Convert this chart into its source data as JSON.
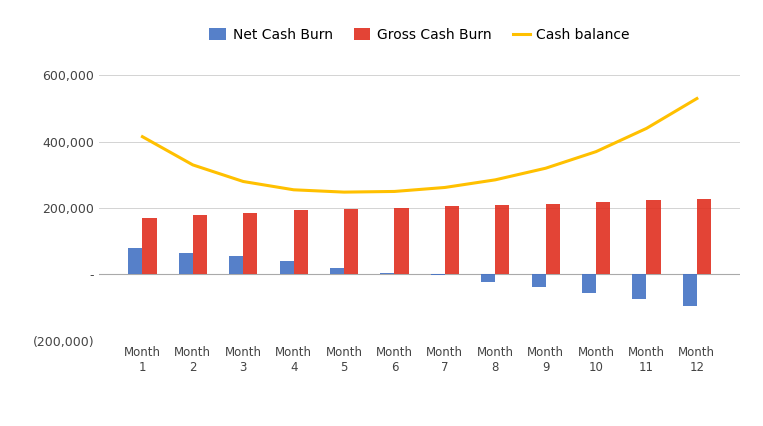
{
  "months": [
    "Month\n1",
    "Month\n2",
    "Month\n3",
    "Month\n4",
    "Month\n5",
    "Month\n6",
    "Month\n7",
    "Month\n8",
    "Month\n9",
    "Month\n10",
    "Month\n11",
    "Month\n12"
  ],
  "net_cash_burn": [
    80000,
    65000,
    55000,
    40000,
    18000,
    5000,
    -3000,
    -22000,
    -38000,
    -55000,
    -75000,
    -95000
  ],
  "gross_cash_burn": [
    170000,
    180000,
    185000,
    193000,
    197000,
    200000,
    205000,
    208000,
    213000,
    217000,
    223000,
    228000
  ],
  "cash_balance": [
    415000,
    330000,
    280000,
    255000,
    248000,
    250000,
    262000,
    285000,
    320000,
    370000,
    440000,
    530000
  ],
  "net_cash_burn_color": "#4472C4",
  "gross_cash_burn_color": "#E03020",
  "cash_balance_color": "#FFC000",
  "background_color": "#FFFFFF",
  "ylim": [
    -200000,
    660000
  ],
  "yticks": [
    -200000,
    0,
    200000,
    400000,
    600000
  ],
  "legend_labels": [
    "Net Cash Burn",
    "Gross Cash Burn",
    "Cash balance"
  ],
  "bar_width": 0.28,
  "grid_color": "#CCCCCC",
  "zero_line_color": "#AAAAAA"
}
